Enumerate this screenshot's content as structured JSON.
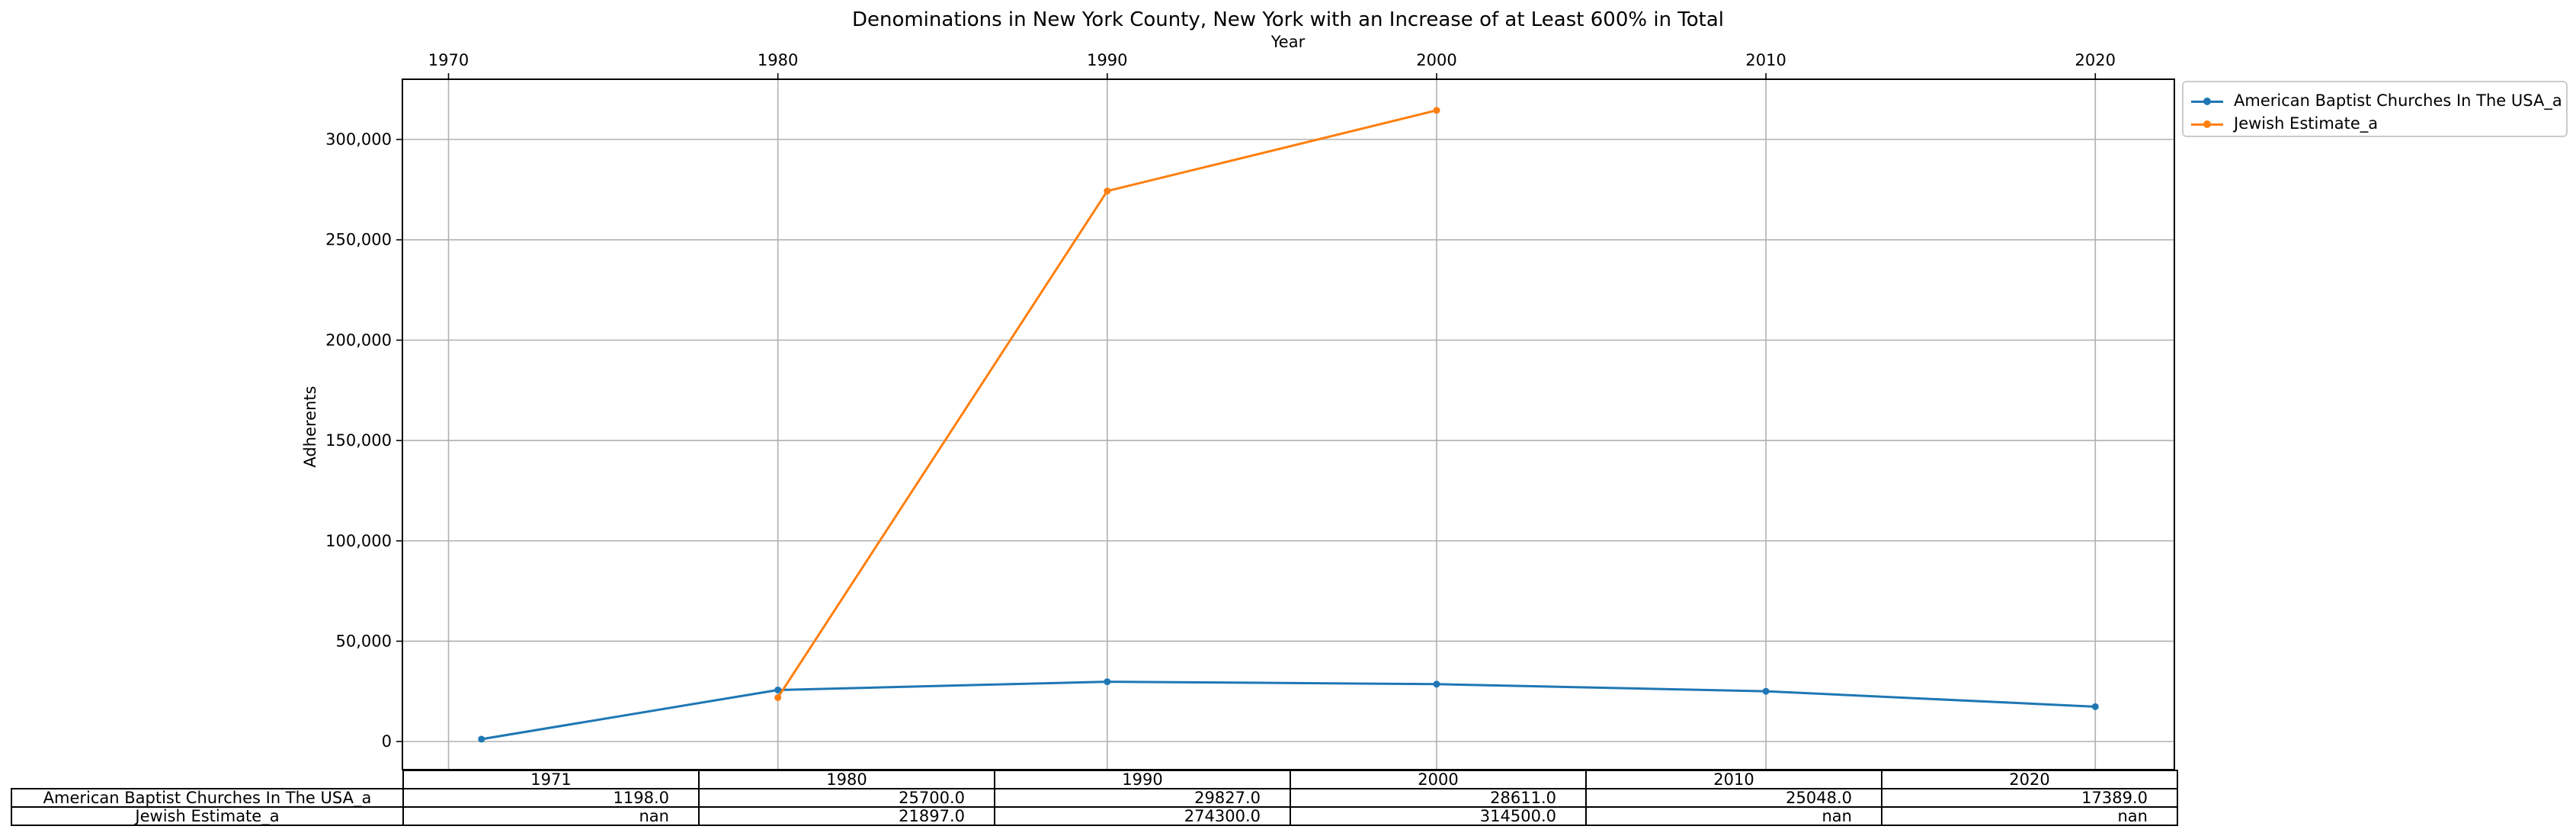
{
  "chart_data": {
    "type": "line",
    "title": "Denominations in New York County, New York with an Increase of at Least 600% in Total",
    "xlabel": "Year",
    "ylabel": "Adherents",
    "x_ticks": [
      1970,
      1980,
      1990,
      2000,
      2010,
      2020
    ],
    "y_ticks": [
      0,
      50000,
      100000,
      150000,
      200000,
      250000,
      300000
    ],
    "y_tick_labels": [
      "0",
      "50,000",
      "100,000",
      "150,000",
      "200,000",
      "250,000",
      "300,000"
    ],
    "xlim": [
      1968.6,
      2022.4
    ],
    "ylim": [
      -14000,
      330000
    ],
    "grid": true,
    "legend_position": "outside-top-right",
    "x": [
      1971,
      1980,
      1990,
      2000,
      2010,
      2020
    ],
    "series": [
      {
        "name": "American Baptist Churches In The USA_a",
        "color": "#1f77b4",
        "values": [
          1198.0,
          25700.0,
          29827.0,
          28611.0,
          25048.0,
          17389.0
        ]
      },
      {
        "name": "Jewish Estimate_a",
        "color": "#ff7f0e",
        "values": [
          null,
          21897.0,
          274300.0,
          314500.0,
          null,
          null
        ]
      }
    ],
    "table": {
      "columns": [
        "1971",
        "1980",
        "1990",
        "2000",
        "2010",
        "2020"
      ],
      "rows": [
        {
          "label": "American Baptist Churches In The USA_a",
          "cells": [
            "1198.0",
            "25700.0",
            "29827.0",
            "28611.0",
            "25048.0",
            "17389.0"
          ]
        },
        {
          "label": "Jewish Estimate_a",
          "cells": [
            "nan",
            "21897.0",
            "274300.0",
            "314500.0",
            "nan",
            "nan"
          ]
        }
      ]
    }
  }
}
